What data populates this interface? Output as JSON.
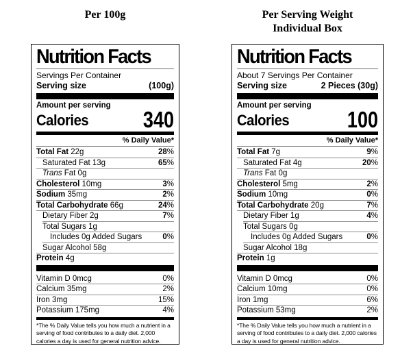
{
  "left": {
    "title": "Per 100g",
    "heading": "Nutrition Facts",
    "servings_per_container": "Servings Per Container",
    "serving_size_label": "Serving size",
    "serving_size_value": "(100g)",
    "amount_per_serving": "Amount per serving",
    "calories_label": "Calories",
    "calories_value": "340",
    "daily_value_header": "% Daily Value*",
    "rows": [
      {
        "b": "Total Fat",
        "r": " 22g",
        "dv": "28",
        "p": "%"
      },
      {
        "r": "Saturated Fat 13g",
        "dv": "65",
        "p": "%"
      },
      {
        "i": "Trans",
        "r": " Fat 0g"
      },
      {
        "b": "Cholesterol",
        "r": " 10mg",
        "dv": "3",
        "p": "%"
      },
      {
        "b": "Sodium",
        "r": " 35mg",
        "dv": "2",
        "p": "%"
      },
      {
        "b": "Total Carbohydrate",
        "r": " 66g",
        "dv": "24",
        "p": "%"
      },
      {
        "r": "Dietary Fiber 2g",
        "dv": "7",
        "p": "%"
      },
      {
        "r": "Total Sugars 1g"
      },
      {
        "r": "Includes 0g Added Sugars",
        "dv": "0",
        "p": "%"
      },
      {
        "r": "Sugar Alcohol 58g"
      },
      {
        "b": "Protein",
        "r": " 4g"
      }
    ],
    "vitamins": [
      {
        "r": "Vitamin D 0mcg",
        "dv": "0%"
      },
      {
        "r": "Calcium 35mg",
        "dv": "2%"
      },
      {
        "r": "Iron 3mg",
        "dv": "15%"
      },
      {
        "r": "Potassium 175mg",
        "dv": "4%"
      }
    ],
    "footnote": "*The % Daily Value tells you how much a nutrient in a serving of food contributes to a daily diet. 2,000 calories a day is used for general nutrition advice."
  },
  "right": {
    "title_line1": "Per Serving Weight",
    "title_line2": "Individual Box",
    "heading": "Nutrition Facts",
    "servings_per_container": "About 7 Servings Per Container",
    "serving_size_label": "Serving size",
    "serving_size_value": "2 Pieces (30g)",
    "amount_per_serving": "Amount per serving",
    "calories_label": "Calories",
    "calories_value": "100",
    "daily_value_header": "% Daily Value*",
    "rows": [
      {
        "b": "Total Fat",
        "r": " 7g",
        "dv": "9",
        "p": "%"
      },
      {
        "r": "Saturated Fat 4g",
        "dv": "20",
        "p": "%"
      },
      {
        "i": "Trans",
        "r": " Fat 0g"
      },
      {
        "b": "Cholesterol",
        "r": " 5mg",
        "dv": "2",
        "p": "%"
      },
      {
        "b": "Sodium",
        "r": " 10mg",
        "dv": "0",
        "p": "%"
      },
      {
        "b": "Total Carbohydrate",
        "r": " 20g",
        "dv": "7",
        "p": "%"
      },
      {
        "r": "Dietary Fiber 1g",
        "dv": "4",
        "p": "%"
      },
      {
        "r": "Total Sugars 0g"
      },
      {
        "r": "Includes 0g Added Sugars",
        "dv": "0",
        "p": "%"
      },
      {
        "r": "Sugar Alcohol 18g"
      },
      {
        "b": "Protein",
        "r": " 1g"
      }
    ],
    "vitamins": [
      {
        "r": "Vitamin D 0mcg",
        "dv": "0%"
      },
      {
        "r": "Calcium 10mg",
        "dv": "0%"
      },
      {
        "r": "Iron 1mg",
        "dv": "6%"
      },
      {
        "r": "Potassium 53mg",
        "dv": "2%"
      }
    ],
    "footnote": "*The % Daily Value tells you how much a nutrient in a serving of food contributes to a daily diet. 2,000 calories a day is used for general nutrition advice."
  },
  "colors": {
    "ink": "#000000",
    "hairline": "#8a8a8a",
    "background": "#ffffff"
  }
}
